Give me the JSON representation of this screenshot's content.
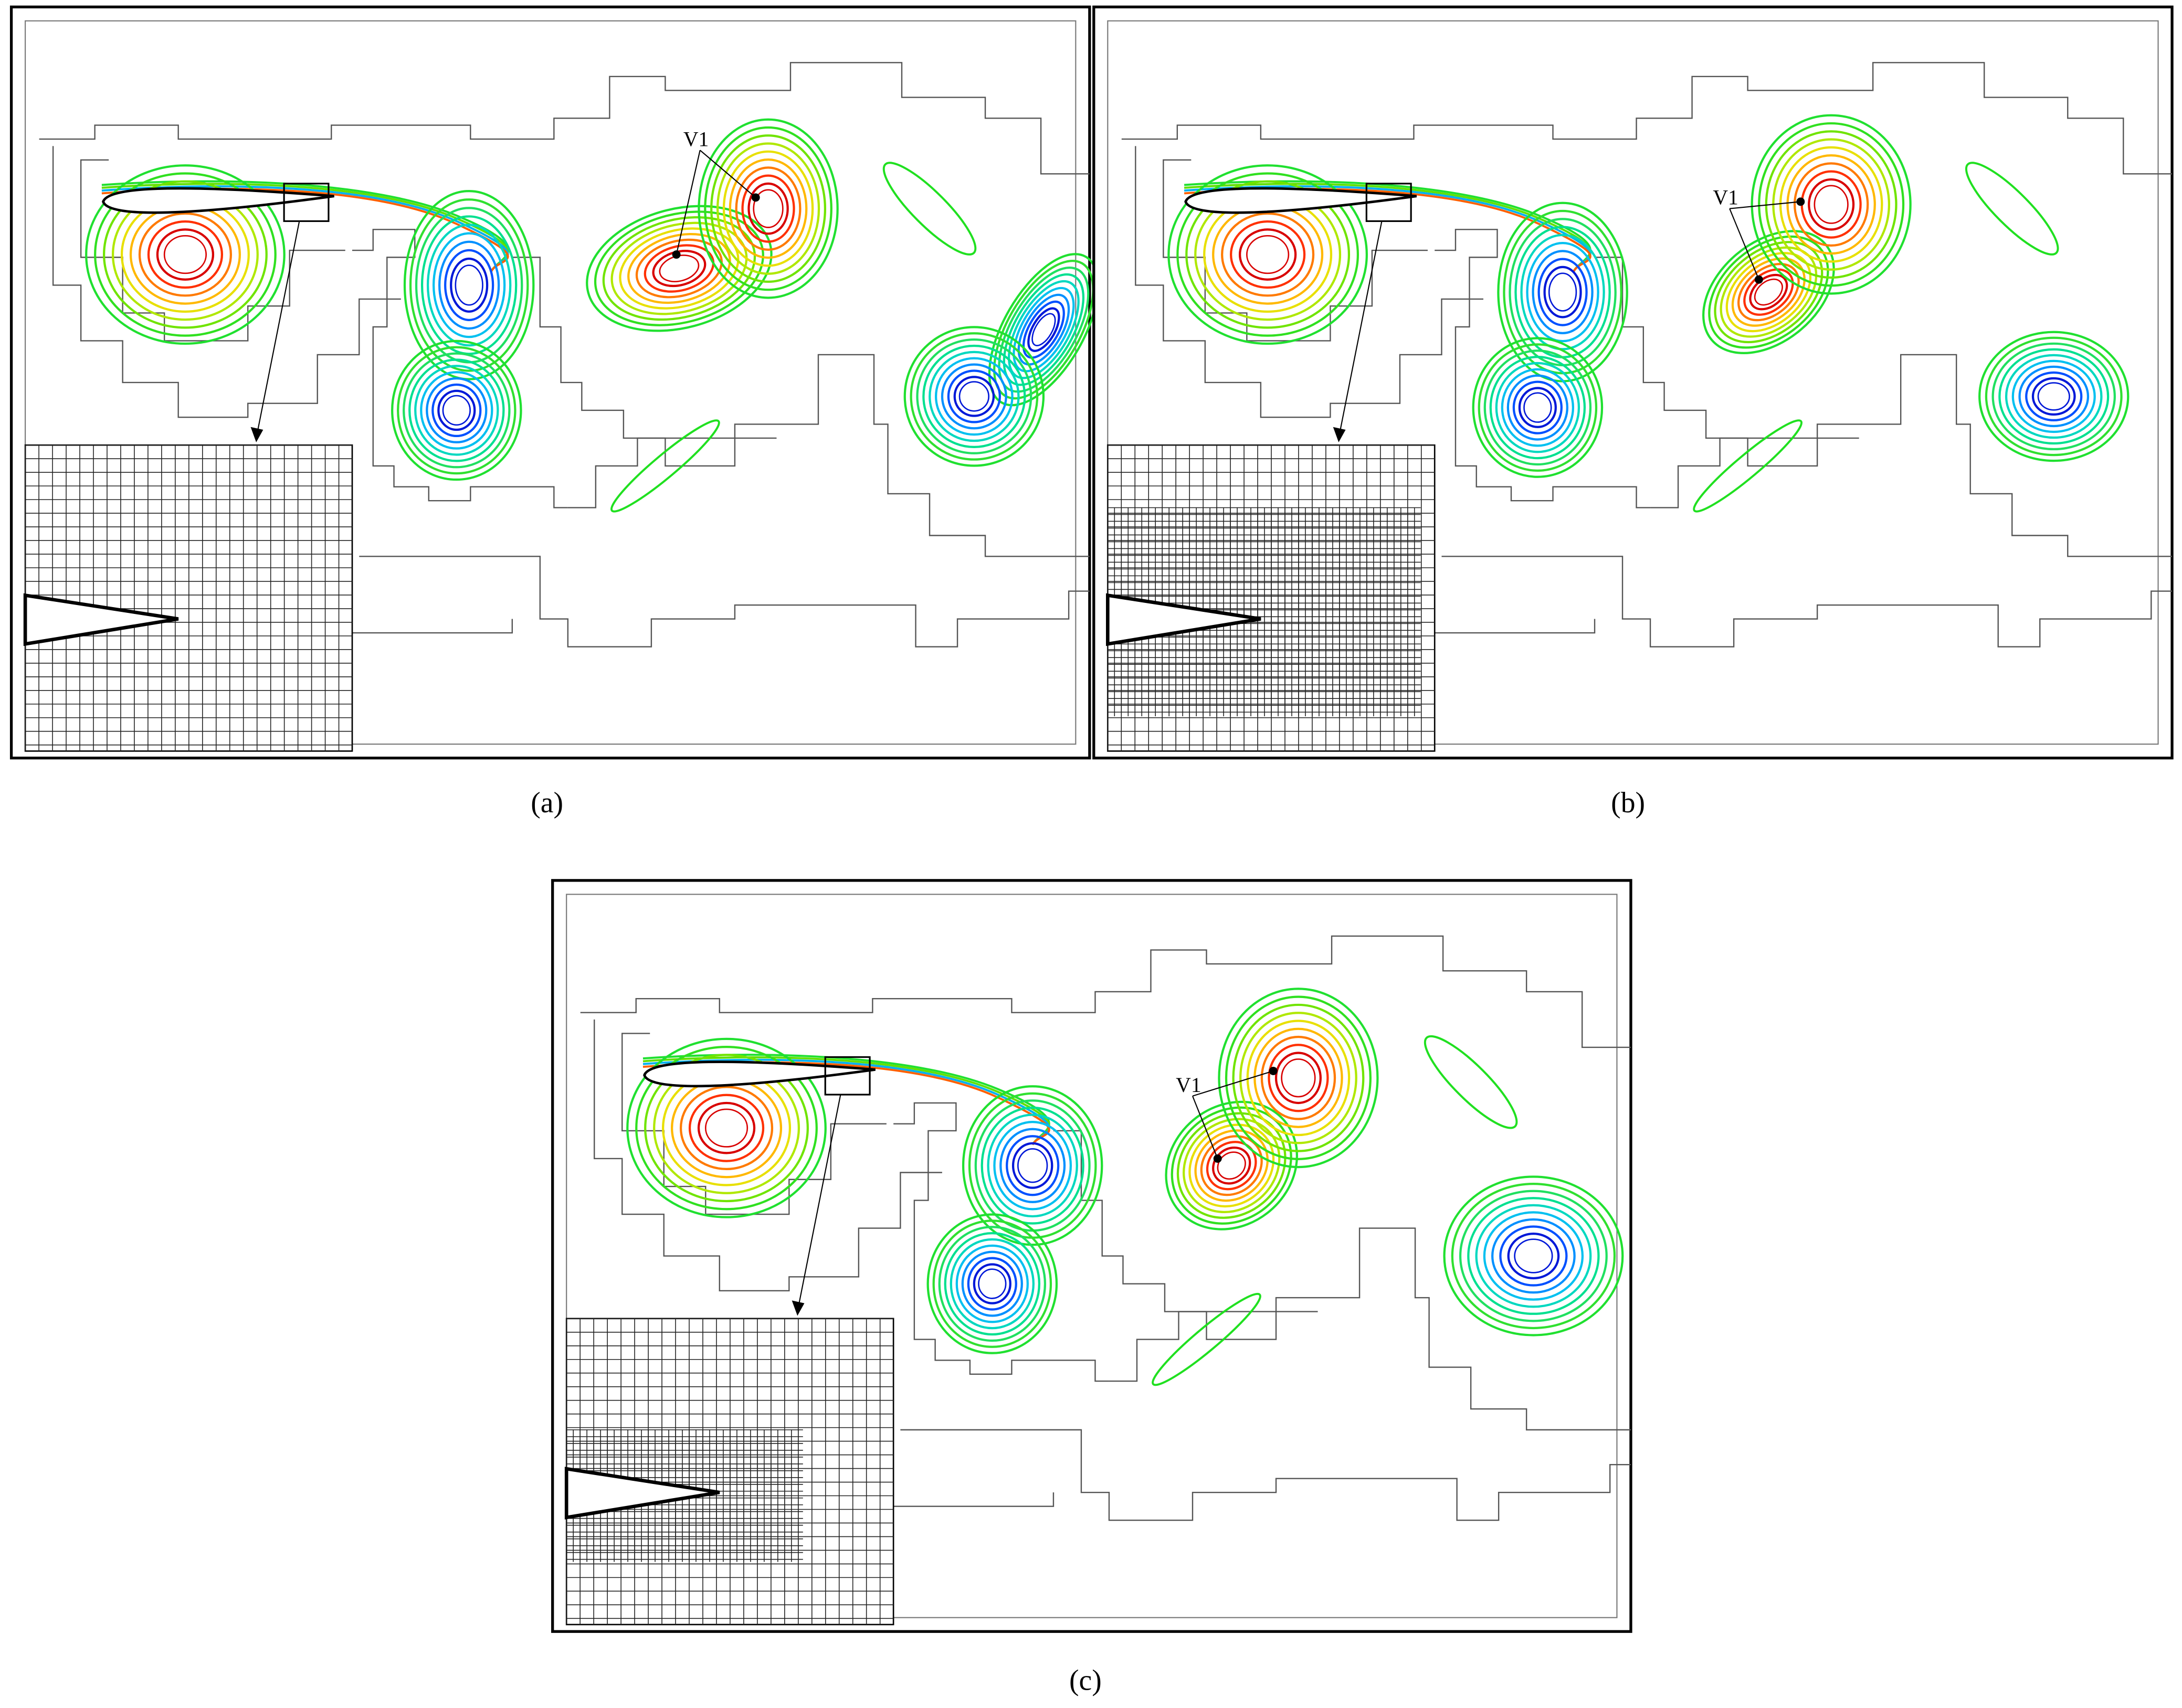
{
  "panels": [
    {
      "caption": "(a)",
      "annotation": "V1"
    },
    {
      "caption": "(b)",
      "annotation": "V1"
    },
    {
      "caption": "(c)",
      "annotation": "V1"
    }
  ]
}
